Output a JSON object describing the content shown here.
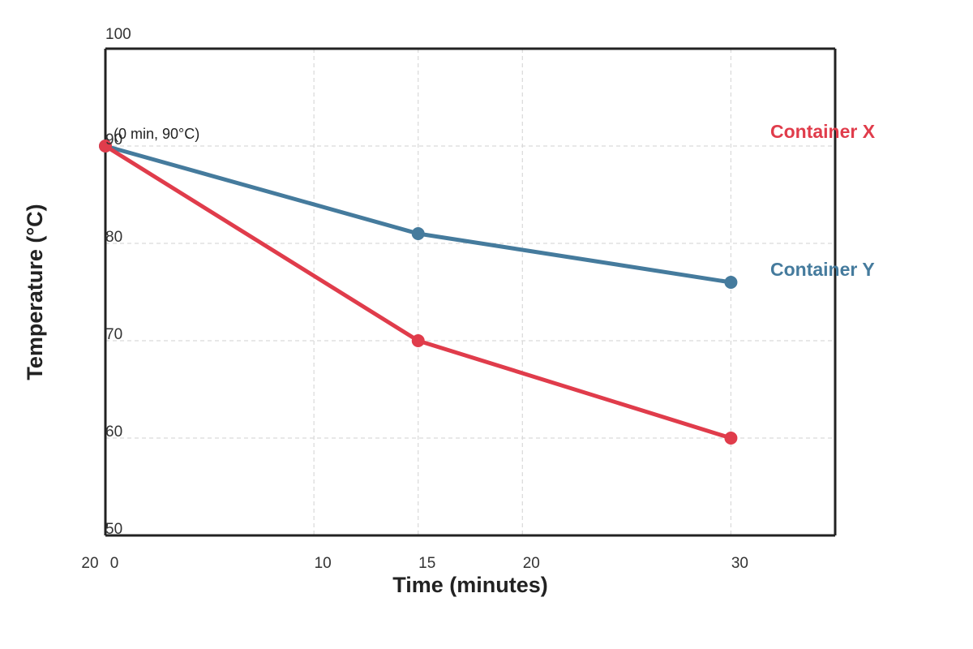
{
  "chart_data": {
    "type": "line",
    "title": "",
    "xlabel": "Time (minutes)",
    "ylabel": "Temperature (°C)",
    "xlim": [
      0,
      35
    ],
    "ylim": [
      50,
      100
    ],
    "grid": true,
    "y_ticks": [
      {
        "value": 100,
        "label": "100"
      },
      {
        "value": 90,
        "label": "90"
      },
      {
        "value": 80,
        "label": "80"
      },
      {
        "value": 70,
        "label": "70"
      },
      {
        "value": 60,
        "label": "60"
      },
      {
        "value": 50,
        "label": "50"
      }
    ],
    "x_ticks": [
      {
        "value": 0,
        "label": "0"
      },
      {
        "value": 10,
        "label": "10"
      },
      {
        "value": 15,
        "label": "15"
      },
      {
        "value": 20,
        "label": "20"
      },
      {
        "value": 30,
        "label": "30"
      }
    ],
    "stray_x_tick_label": "20",
    "series": [
      {
        "name": "Container Y",
        "color": "#457b9d",
        "points": [
          {
            "x": 0,
            "y": 90
          },
          {
            "x": 15,
            "y": 81
          },
          {
            "x": 30,
            "y": 76
          }
        ]
      },
      {
        "name": "Container X",
        "color": "#e03c4b",
        "points": [
          {
            "x": 0,
            "y": 90
          },
          {
            "x": 15,
            "y": 70
          },
          {
            "x": 30,
            "y": 60
          }
        ]
      }
    ],
    "annotations": [
      {
        "text": "(0 min, 90°C)",
        "x": 0,
        "y": 90
      }
    ]
  }
}
